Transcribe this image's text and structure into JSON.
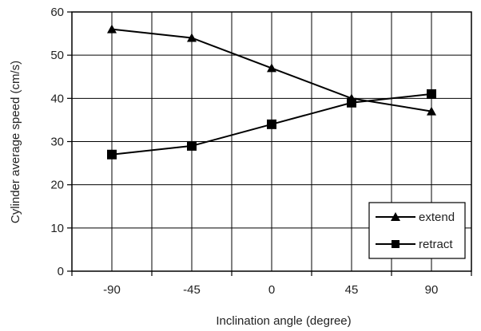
{
  "chart_data": {
    "type": "line",
    "xlabel": "Inclination angle (degree)",
    "ylabel": "Cylinder average speed (cm/s)",
    "categories": [
      "-90",
      "-45",
      "0",
      "45",
      "90"
    ],
    "ylim": [
      0,
      60
    ],
    "yticks": [
      "0",
      "10",
      "20",
      "30",
      "40",
      "50",
      "60"
    ],
    "grid": true,
    "legend_position": "bottom-right",
    "series": [
      {
        "name": "extend",
        "marker": "triangle",
        "values": [
          56,
          54,
          47,
          40,
          37
        ]
      },
      {
        "name": "retract",
        "marker": "square",
        "values": [
          27,
          29,
          34,
          39,
          41
        ]
      }
    ],
    "colors": {
      "line": "#000000",
      "grid": "#000000"
    }
  }
}
